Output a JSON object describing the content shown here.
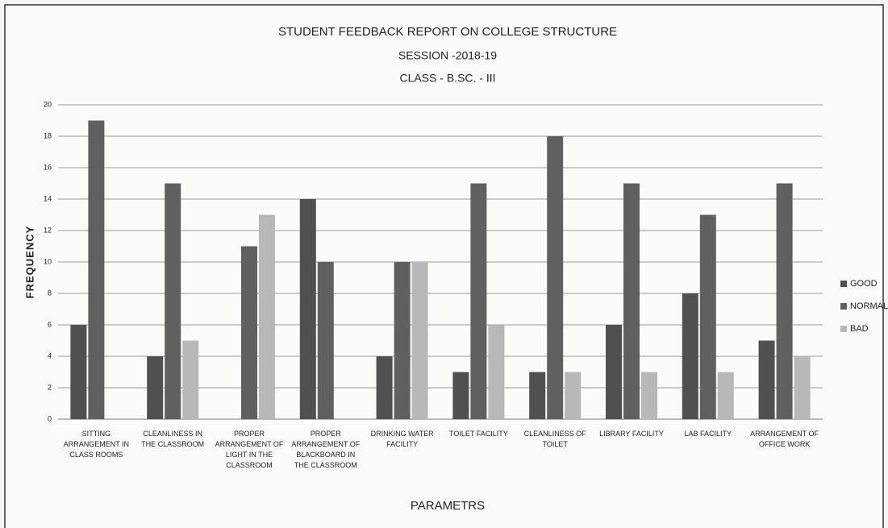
{
  "chart_data": {
    "type": "bar",
    "title": "STUDENT FEEDBACK REPORT  ON COLLEGE STRUCTURE",
    "subtitle": [
      "SESSION -2018-19",
      "CLASS - B.SC. - III"
    ],
    "x_label": "PARAMETRS",
    "y_label": "FREQUENCY",
    "categories": [
      "SITTING ARRANGEMENT IN CLASS ROOMS",
      "CLEANLINESS IN THE CLASSROOM",
      "PROPER ARRANGEMENT OF LIGHT IN THE CLASSROOM",
      "PROPER ARRANGEMENT OF BLACKBOARD IN THE CLASSROOM",
      "DRINKING WATER FACILITY",
      "TOILET FACILITY",
      "CLEANLINESS OF TOILET",
      "LIBRARY FACILITY",
      "LAB FACILITY",
      "ARRANGEMENT OF OFFICE WORK"
    ],
    "series": [
      {
        "name": "GOOD",
        "color": "#505050",
        "values": [
          6,
          4,
          0,
          14,
          4,
          3,
          3,
          6,
          8,
          5
        ]
      },
      {
        "name": "NORMAL",
        "color": "#606060",
        "values": [
          19,
          15,
          11,
          10,
          10,
          15,
          18,
          15,
          13,
          15
        ]
      },
      {
        "name": "BAD",
        "color": "#b8b8b8",
        "values": [
          0,
          5,
          13,
          0,
          10,
          6,
          3,
          3,
          3,
          4
        ]
      }
    ],
    "ylim": [
      0,
      20
    ],
    "yticks": [
      0,
      2,
      4,
      6,
      8,
      10,
      12,
      14,
      16,
      18,
      20
    ],
    "grid": true,
    "legend": "right"
  }
}
